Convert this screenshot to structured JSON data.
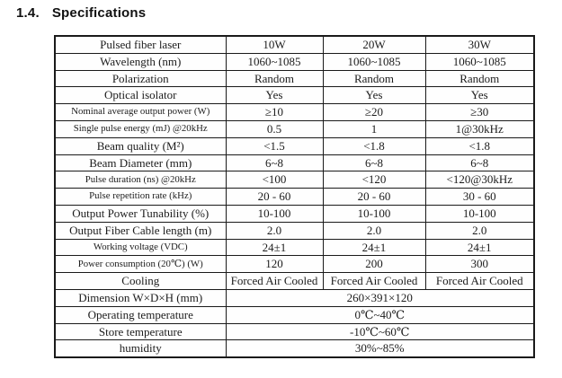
{
  "page": {
    "title_number": "1.4.",
    "title_text": "Specifications"
  },
  "colors": {
    "border": "#1a1a1a",
    "text": "#1c1c1c",
    "background": "#ffffff"
  },
  "table": {
    "rows": [
      {
        "label": "Pulsed fiber laser",
        "values": [
          "10W",
          "20W",
          "30W"
        ],
        "small": false
      },
      {
        "label": "Wavelength (nm)",
        "values": [
          "1060~1085",
          "1060~1085",
          "1060~1085"
        ],
        "small": false
      },
      {
        "label": "Polarization",
        "values": [
          "Random",
          "Random",
          "Random"
        ],
        "small": false
      },
      {
        "label": "Optical isolator",
        "values": [
          "Yes",
          "Yes",
          "Yes"
        ],
        "small": false
      },
      {
        "label": "Nominal average output power (W)",
        "values": [
          "≥10",
          "≥20",
          "≥30"
        ],
        "small": true
      },
      {
        "label": "Single pulse energy (mJ) @20kHz",
        "values": [
          "0.5",
          "1",
          "1@30kHz"
        ],
        "small": true
      },
      {
        "label": "Beam quality (M²)",
        "values": [
          "<1.5",
          "<1.8",
          "<1.8"
        ],
        "small": false
      },
      {
        "label": "Beam Diameter (mm)",
        "values": [
          "6~8",
          "6~8",
          "6~8"
        ],
        "small": false
      },
      {
        "label": "Pulse duration (ns) @20kHz",
        "values": [
          "<100",
          "<120",
          "<120@30kHz"
        ],
        "small": true
      },
      {
        "label": "Pulse repetition rate (kHz)",
        "values": [
          "20 - 60",
          "20 - 60",
          "30 - 60"
        ],
        "small": true
      },
      {
        "label": "Output Power Tunability (%)",
        "values": [
          "10-100",
          "10-100",
          "10-100"
        ],
        "small": false
      },
      {
        "label": "Output Fiber Cable length (m)",
        "values": [
          "2.0",
          "2.0",
          "2.0"
        ],
        "small": false
      },
      {
        "label": "Working voltage (VDC)",
        "values": [
          "24±1",
          "24±1",
          "24±1"
        ],
        "small": true
      },
      {
        "label": "Power consumption (20℃)  (W)",
        "values": [
          "120",
          "200",
          "300"
        ],
        "small": true
      },
      {
        "label": "Cooling",
        "values": [
          "Forced Air Cooled",
          "Forced Air Cooled",
          "Forced Air Cooled"
        ],
        "small": false
      },
      {
        "label": "Dimension W×D×H (mm)",
        "span": "260×391×120",
        "small": false
      },
      {
        "label": "Operating temperature",
        "span": "0℃~40℃",
        "small": false
      },
      {
        "label": "Store temperature",
        "span": "-10℃~60℃",
        "small": false
      },
      {
        "label": "humidity",
        "span": "30%~85%",
        "small": false
      }
    ]
  }
}
